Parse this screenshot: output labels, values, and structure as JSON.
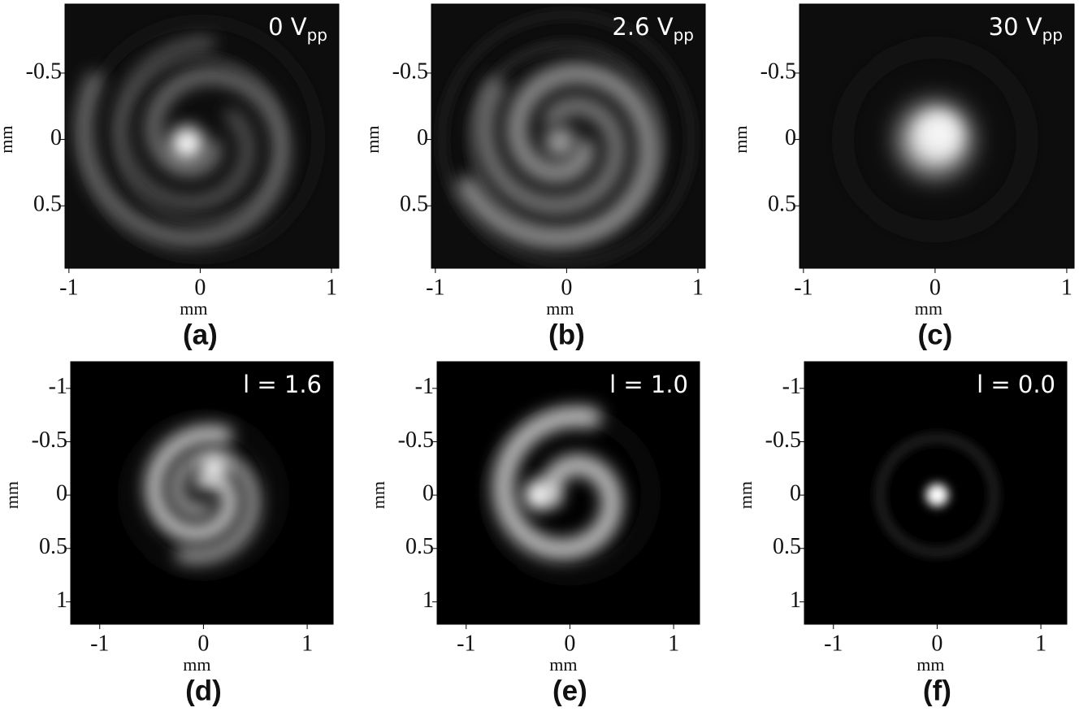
{
  "panels": [
    {
      "label": "(a)",
      "annotation": {
        "text": "0 V",
        "subscript": "pp"
      },
      "x_axis": {
        "title": "mm",
        "ticks": [
          -1,
          0,
          1
        ],
        "lim": [
          -1.03,
          1.056
        ]
      },
      "y_axis": {
        "title": "mm",
        "ticks": [
          -0.5,
          0,
          0.5
        ],
        "lim": [
          -1.02,
          0.97
        ]
      }
    },
    {
      "label": "(b)",
      "annotation": {
        "text": "2.6 V",
        "subscript": "pp"
      },
      "x_axis": {
        "title": "mm",
        "ticks": [
          -1,
          0,
          1
        ],
        "lim": [
          -1.03,
          1.056
        ]
      },
      "y_axis": {
        "title": "mm",
        "ticks": [
          -0.5,
          0,
          0.5
        ],
        "lim": [
          -1.02,
          0.97
        ]
      }
    },
    {
      "label": "(c)",
      "annotation": {
        "text": "30 V",
        "subscript": "pp"
      },
      "x_axis": {
        "title": "mm",
        "ticks": [
          -1,
          0,
          1
        ],
        "lim": [
          -1.03,
          1.056
        ]
      },
      "y_axis": {
        "title": "mm",
        "ticks": [
          -0.5,
          0,
          0.5
        ],
        "lim": [
          -1.02,
          0.97
        ]
      }
    },
    {
      "label": "(d)",
      "annotation": {
        "text": "l = 1.6"
      },
      "x_axis": {
        "title": "mm",
        "ticks": [
          -1,
          0,
          1
        ],
        "lim": [
          -1.28,
          1.25
        ]
      },
      "y_axis": {
        "title": "mm",
        "ticks": [
          -1,
          -0.5,
          0,
          0.5,
          1
        ],
        "lim": [
          -1.25,
          1.21
        ]
      }
    },
    {
      "label": "(e)",
      "annotation": {
        "text": "l = 1.0"
      },
      "x_axis": {
        "title": "mm",
        "ticks": [
          -1,
          0,
          1
        ],
        "lim": [
          -1.28,
          1.25
        ]
      },
      "y_axis": {
        "title": "mm",
        "ticks": [
          -1,
          -0.5,
          0,
          0.5,
          1
        ],
        "lim": [
          -1.25,
          1.21
        ]
      }
    },
    {
      "label": "(f)",
      "annotation": {
        "text": "l = 0.0"
      },
      "x_axis": {
        "title": "mm",
        "ticks": [
          -1,
          0,
          1
        ],
        "lim": [
          -1.28,
          1.25
        ]
      },
      "y_axis": {
        "title": "mm",
        "ticks": [
          -1,
          -0.5,
          0,
          0.5,
          1
        ],
        "lim": [
          -1.25,
          1.21
        ]
      }
    }
  ]
}
